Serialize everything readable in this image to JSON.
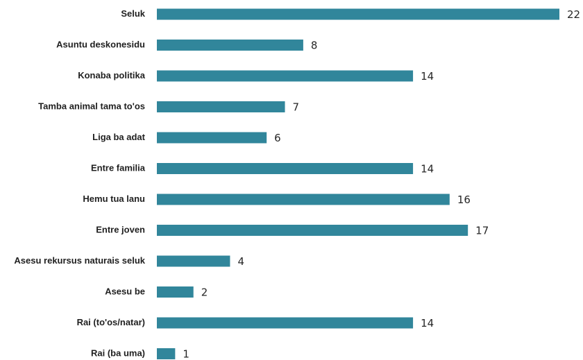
{
  "chart_data": {
    "type": "bar",
    "orientation": "horizontal",
    "bar_color": "#31869b",
    "grid": false,
    "legend": "none",
    "xlim": [
      0,
      22
    ],
    "categories": [
      "Seluk",
      "Asuntu deskonesidu",
      "Konaba politika",
      "Tamba animal tama to'os",
      "Liga ba adat",
      "Entre familia",
      "Hemu tua lanu",
      "Entre joven",
      "Asesu rekursus naturais seluk",
      "Asesu be",
      "Rai (to'os/natar)",
      "Rai (ba uma)"
    ],
    "values": [
      22,
      8,
      14,
      7,
      6,
      14,
      16,
      17,
      4,
      2,
      14,
      1
    ]
  }
}
